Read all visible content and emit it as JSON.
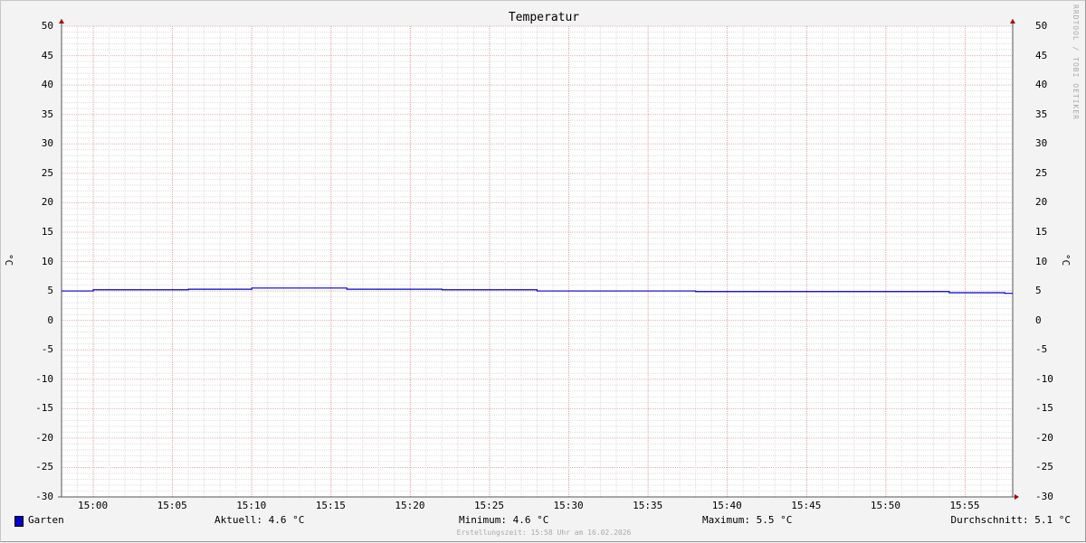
{
  "chart_data": {
    "type": "line",
    "title": "Temperatur",
    "ylabel": "°C",
    "ylim": [
      -30,
      50
    ],
    "yticks": [
      "50",
      "45",
      "40",
      "35",
      "30",
      "25",
      "20",
      "15",
      "10",
      "5",
      "0",
      "-5",
      "-10",
      "-15",
      "-20",
      "-25",
      "-30"
    ],
    "xrange": [
      "14:58",
      "15:58"
    ],
    "xticks": [
      "15:00",
      "15:05",
      "15:10",
      "15:15",
      "15:20",
      "15:25",
      "15:30",
      "15:35",
      "15:40",
      "15:45",
      "15:50",
      "15:55"
    ],
    "grid": true,
    "series": [
      {
        "name": "Garten",
        "color": "#0000cc",
        "steps": [
          {
            "from": "14:58",
            "to": "15:00",
            "value": 5.0
          },
          {
            "from": "15:00",
            "to": "15:06",
            "value": 5.2
          },
          {
            "from": "15:06",
            "to": "15:10",
            "value": 5.3
          },
          {
            "from": "15:10",
            "to": "15:16",
            "value": 5.5
          },
          {
            "from": "15:16",
            "to": "15:22",
            "value": 5.3
          },
          {
            "from": "15:22",
            "to": "15:28",
            "value": 5.2
          },
          {
            "from": "15:28",
            "to": "15:38",
            "value": 5.0
          },
          {
            "from": "15:38",
            "to": "15:54",
            "value": 4.9
          },
          {
            "from": "15:54",
            "to": "15:57.5",
            "value": 4.7
          },
          {
            "from": "15:57.5",
            "to": "15:58",
            "value": 4.6
          }
        ]
      }
    ]
  },
  "legend": {
    "name": "Garten",
    "aktuell": "Aktuell: 4.6 °C",
    "minimum": "Minimum: 4.6 °C",
    "maximum": "Maximum: 5.5 °C",
    "durchschnitt": "Durchschnitt: 5.1 °C"
  },
  "watermark": "RRDTOOL / TOBI OETIKER",
  "footer": "Erstellungszeit: 15:58 Uhr am 16.02.2026"
}
